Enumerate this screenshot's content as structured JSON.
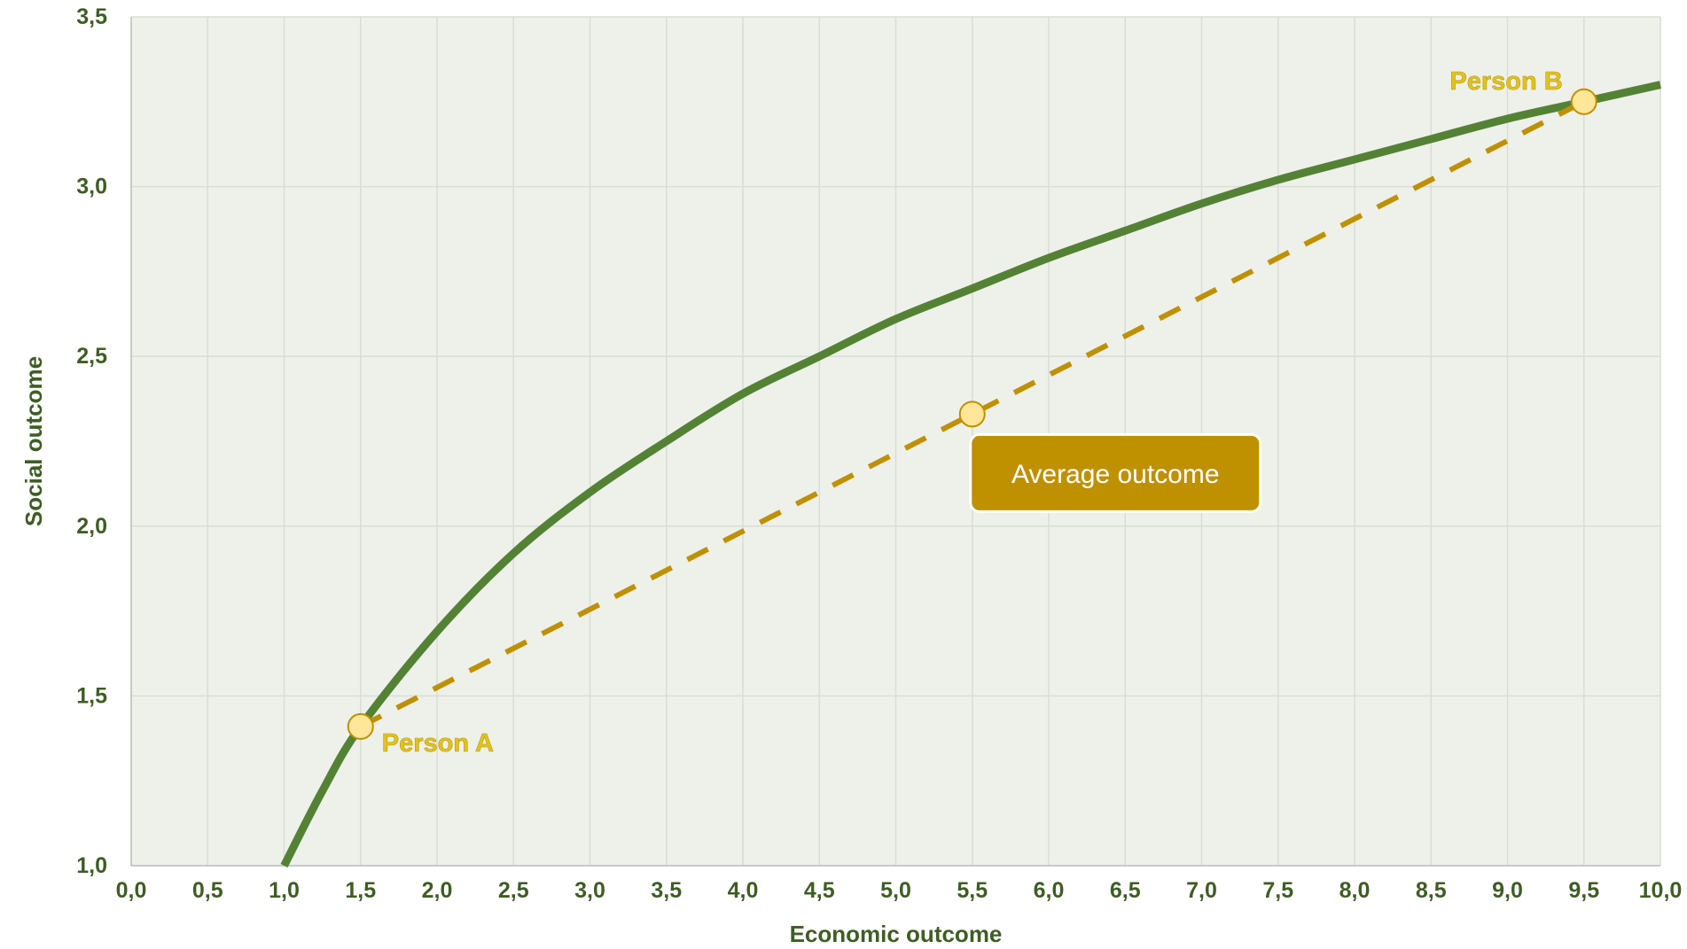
{
  "chart_data": {
    "type": "line",
    "title": "",
    "xlabel": "Economic outcome",
    "ylabel": "Social outcome",
    "xlim": [
      0,
      10
    ],
    "ylim": [
      1,
      3.5
    ],
    "x_ticks": [
      "0,0",
      "0,5",
      "1,0",
      "1,5",
      "2,0",
      "2,5",
      "3,0",
      "3,5",
      "4,0",
      "4,5",
      "5,0",
      "5,5",
      "6,0",
      "6,5",
      "7,0",
      "7,5",
      "8,0",
      "8,5",
      "9,0",
      "9,5",
      "10,0"
    ],
    "y_ticks": [
      "1,0",
      "1,5",
      "2,0",
      "2,5",
      "3,0",
      "3,5"
    ],
    "grid": true,
    "series": [
      {
        "curve": "log",
        "color": "#548235",
        "x": [
          1.0,
          1.25,
          1.5,
          2.0,
          2.5,
          3.0,
          3.5,
          4.0,
          4.5,
          5.0,
          5.5,
          6.0,
          6.5,
          7.0,
          7.5,
          8.0,
          8.5,
          9.0,
          9.5,
          10.0
        ],
        "y": [
          1.0,
          1.22,
          1.41,
          1.69,
          1.92,
          2.1,
          2.25,
          2.39,
          2.5,
          2.61,
          2.7,
          2.79,
          2.87,
          2.95,
          3.02,
          3.08,
          3.14,
          3.2,
          3.25,
          3.3
        ]
      },
      {
        "curve": "dashed",
        "color": "#bf9000",
        "x": [
          1.5,
          9.5
        ],
        "y": [
          1.41,
          3.25
        ]
      }
    ],
    "points": [
      {
        "label": "Person A",
        "x": 1.5,
        "y": 1.41
      },
      {
        "label": "Person B",
        "x": 9.5,
        "y": 3.25
      },
      {
        "label": "",
        "x": 5.5,
        "y": 2.33
      }
    ],
    "annotation": {
      "text": "Average outcome",
      "x": 5.5,
      "y": 2.33
    }
  },
  "colors": {
    "plot_bg": "#eef1ea",
    "grid": "#d9ddd4",
    "curve": "#548235",
    "dash": "#bf9000",
    "point_fill": "#ffe699",
    "point_stroke": "#bf9000",
    "label_text": "#e3c21a",
    "axis_text": "#3f5d25",
    "box_fill": "#bf9000"
  }
}
